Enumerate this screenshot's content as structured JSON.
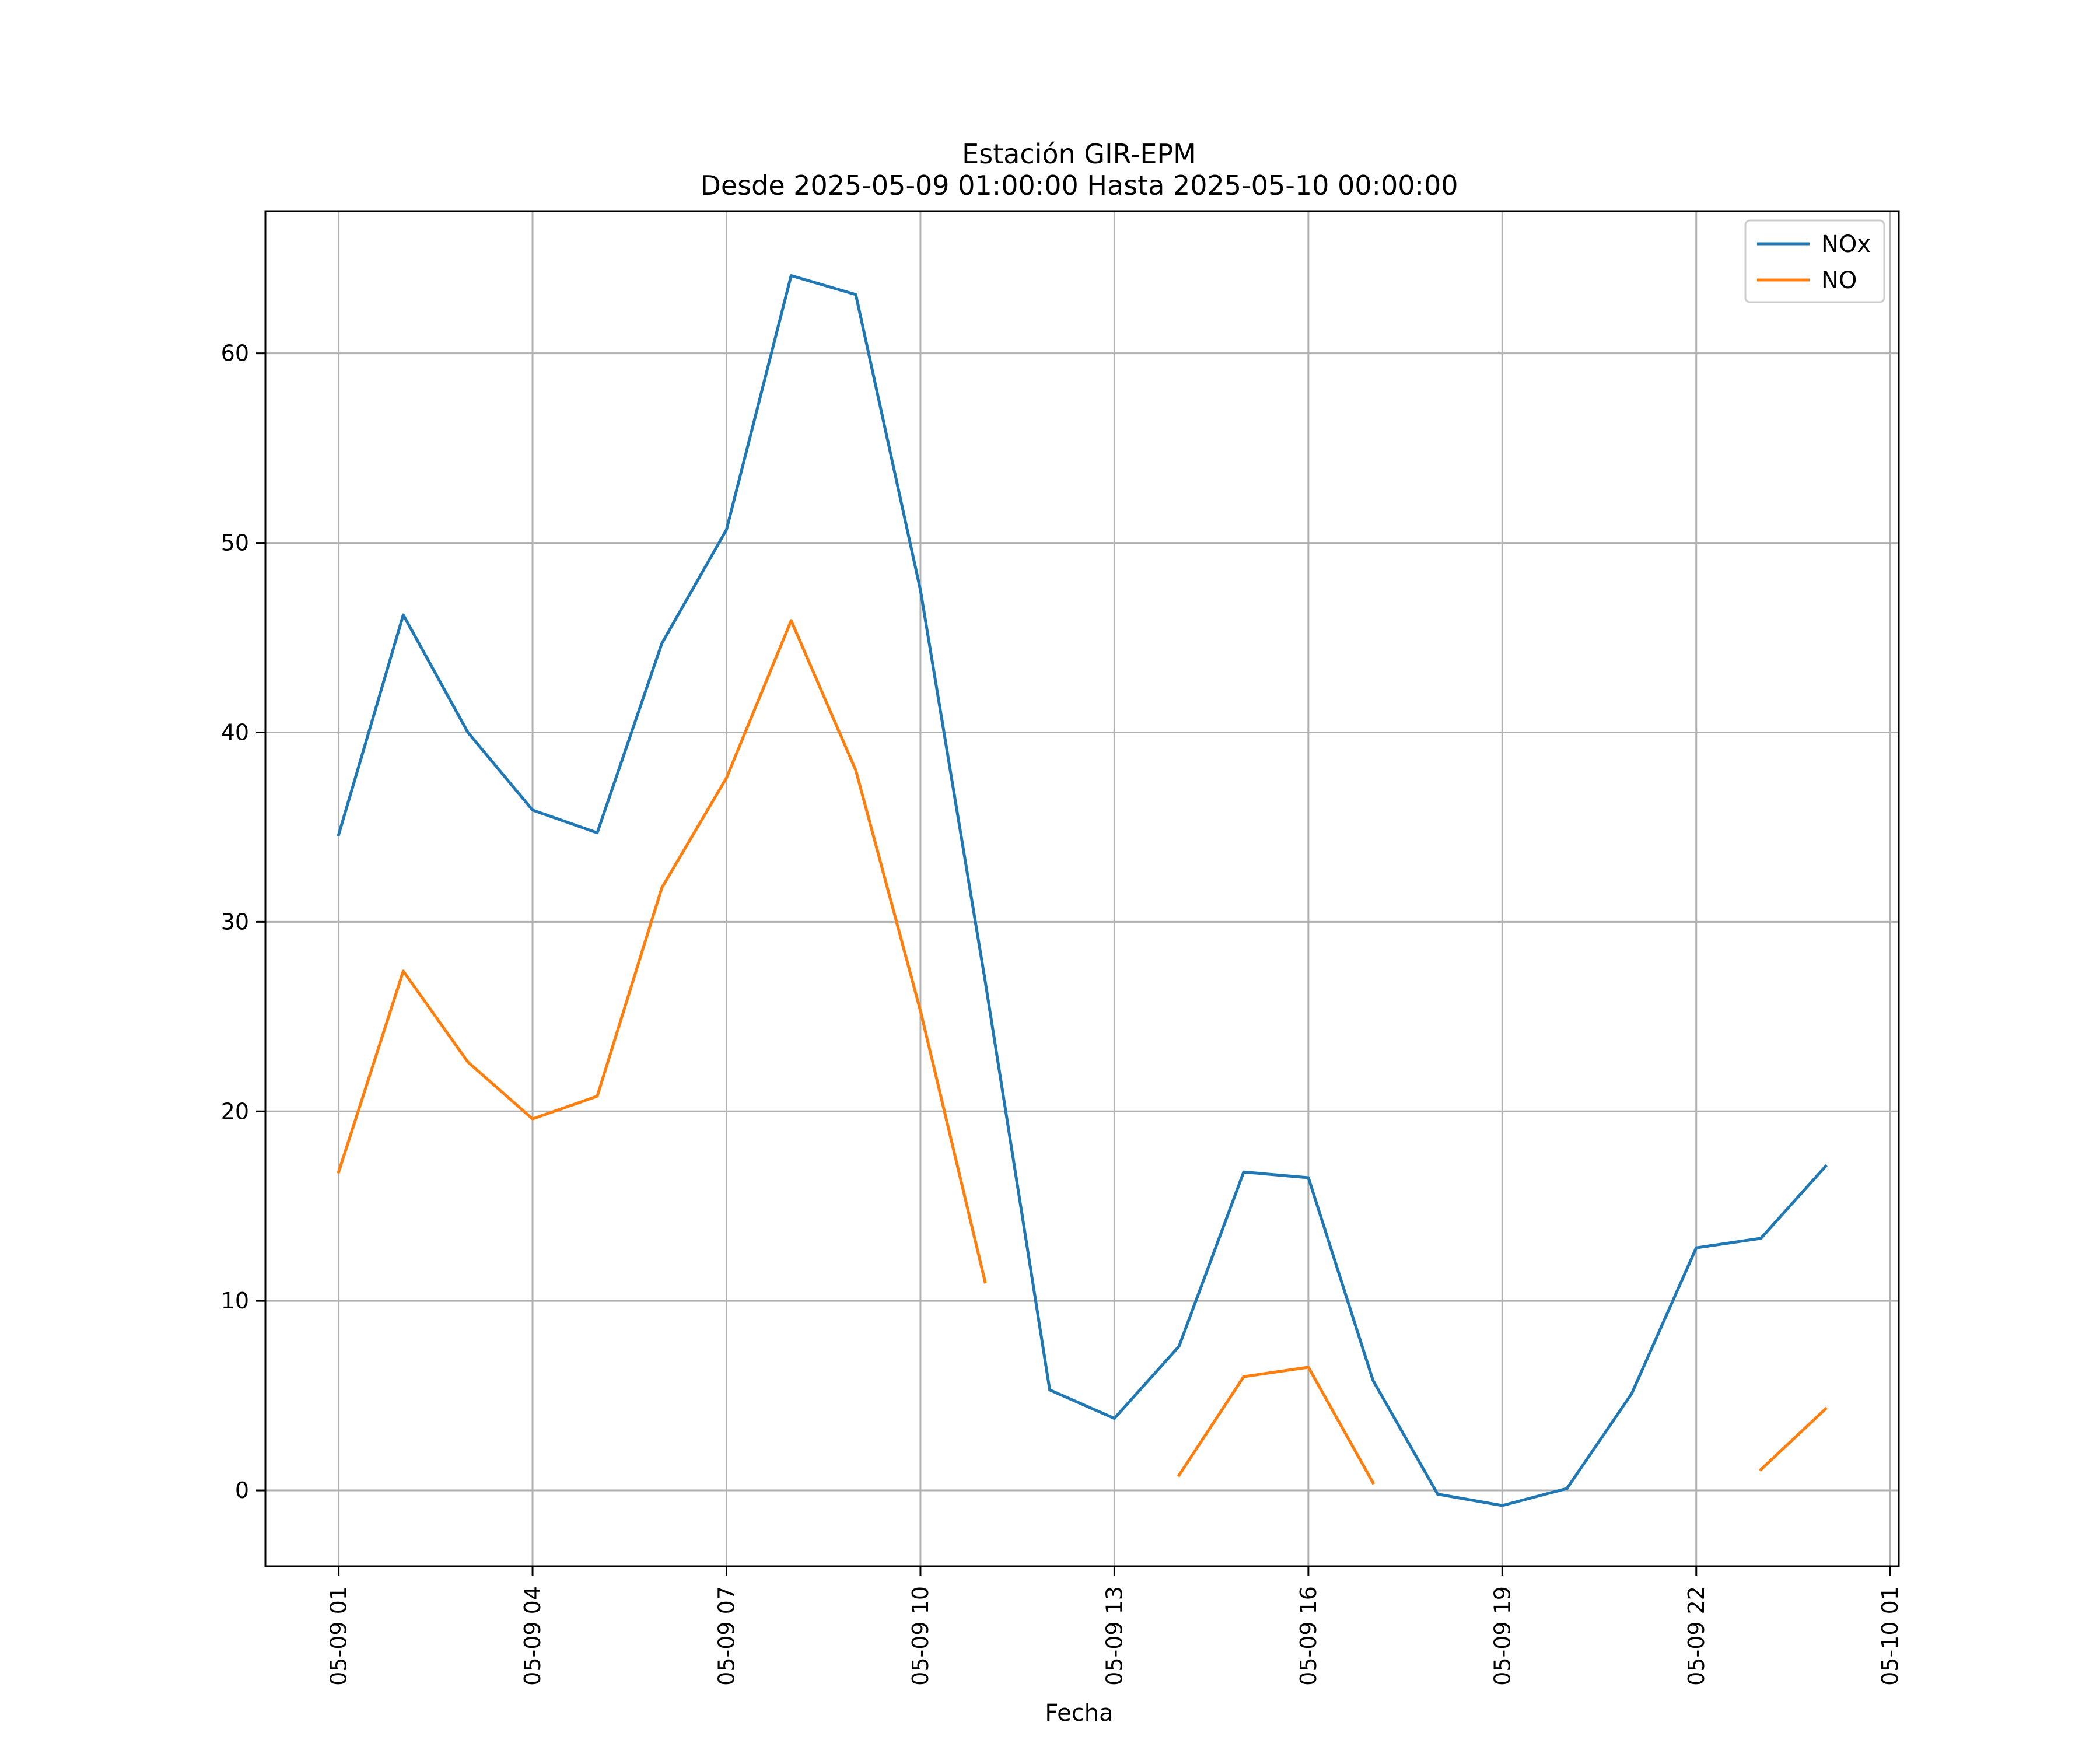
{
  "chart_data": {
    "type": "line",
    "title": "Estación GIR-EPM",
    "subtitle": "Desde 2025-05-09 01:00:00 Hasta 2025-05-10 00:00:00",
    "xlabel": "Fecha",
    "ylabel": "",
    "x": [
      "2025-05-09 01:00",
      "2025-05-09 02:00",
      "2025-05-09 03:00",
      "2025-05-09 04:00",
      "2025-05-09 05:00",
      "2025-05-09 06:00",
      "2025-05-09 07:00",
      "2025-05-09 08:00",
      "2025-05-09 09:00",
      "2025-05-09 10:00",
      "2025-05-09 11:00",
      "2025-05-09 12:00",
      "2025-05-09 13:00",
      "2025-05-09 14:00",
      "2025-05-09 15:00",
      "2025-05-09 16:00",
      "2025-05-09 17:00",
      "2025-05-09 18:00",
      "2025-05-09 19:00",
      "2025-05-09 20:00",
      "2025-05-09 21:00",
      "2025-05-09 22:00",
      "2025-05-09 23:00",
      "2025-05-10 00:00"
    ],
    "xlim": [
      "2025-05-08 23:52",
      "2025-05-10 01:08"
    ],
    "ylim": [
      -4,
      67.5
    ],
    "xticks": [
      "2025-05-09 01:00",
      "2025-05-09 04:00",
      "2025-05-09 07:00",
      "2025-05-09 10:00",
      "2025-05-09 13:00",
      "2025-05-09 16:00",
      "2025-05-09 19:00",
      "2025-05-09 22:00",
      "2025-05-10 01:00"
    ],
    "xtick_labels": [
      "05-09 01",
      "05-09 04",
      "05-09 07",
      "05-09 10",
      "05-09 13",
      "05-09 16",
      "05-09 19",
      "05-09 22",
      "05-10 01"
    ],
    "yticks": [
      0,
      10,
      20,
      30,
      40,
      50,
      60
    ],
    "ytick_labels": [
      "0",
      "10",
      "20",
      "30",
      "40",
      "50",
      "60"
    ],
    "grid": true,
    "legend_position": "top-right",
    "series": [
      {
        "name": "NOx",
        "color": "#1f77b4",
        "values": [
          34.6,
          46.2,
          40.0,
          35.9,
          34.7,
          44.7,
          50.7,
          64.1,
          63.1,
          47.5,
          26.9,
          5.3,
          3.8,
          7.6,
          16.8,
          16.5,
          5.8,
          -0.2,
          -0.8,
          0.1,
          5.1,
          12.8,
          13.3,
          17.1
        ]
      },
      {
        "name": "NO",
        "color": "#ff7f0e",
        "values": [
          16.8,
          27.4,
          22.6,
          19.6,
          20.8,
          31.8,
          37.6,
          45.9,
          38.0,
          25.3,
          11.0,
          null,
          null,
          0.8,
          6.0,
          6.5,
          0.4,
          null,
          null,
          null,
          null,
          null,
          1.1,
          4.3
        ]
      }
    ]
  }
}
